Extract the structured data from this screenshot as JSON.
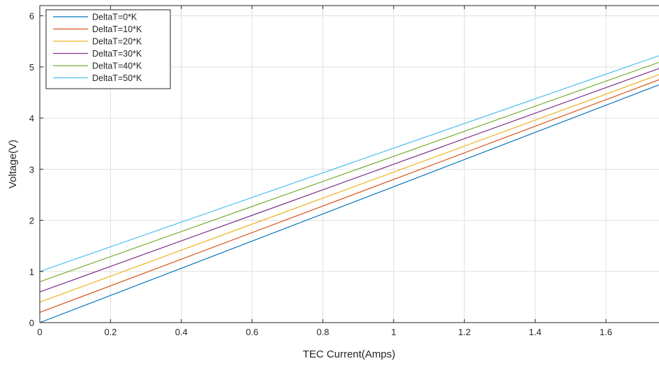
{
  "chart_data": {
    "type": "line",
    "title": "",
    "xlabel": "TEC Current(Amps)",
    "ylabel": "Voltage(V)",
    "xlim": [
      0,
      1.75
    ],
    "ylim": [
      0,
      6.2
    ],
    "xticks": [
      0,
      0.2,
      0.4,
      0.6,
      0.8,
      1,
      1.2,
      1.4,
      1.6
    ],
    "xtick_labels": [
      "0",
      "0.2",
      "0.4",
      "0.6",
      "0.8",
      "1",
      "1.2",
      "1.4",
      "1.6"
    ],
    "yticks": [
      0,
      1,
      2,
      3,
      4,
      5,
      6
    ],
    "ytick_labels": [
      "0",
      "1",
      "2",
      "3",
      "4",
      "5",
      "6"
    ],
    "grid": true,
    "legend_position": "top-left",
    "x": [
      0,
      1.75
    ],
    "series": [
      {
        "name": "DeltaT=0*K",
        "color": "#0072BD",
        "values": [
          0.0,
          4.65
        ]
      },
      {
        "name": "DeltaT=10*K",
        "color": "#D95319",
        "values": [
          0.2,
          4.75
        ]
      },
      {
        "name": "DeltaT=20*K",
        "color": "#EDB120",
        "values": [
          0.4,
          4.85
        ]
      },
      {
        "name": "DeltaT=30*K",
        "color": "#7E2F8E",
        "values": [
          0.6,
          4.97
        ]
      },
      {
        "name": "DeltaT=40*K",
        "color": "#77AC30",
        "values": [
          0.8,
          5.09
        ]
      },
      {
        "name": "DeltaT=50*K",
        "color": "#4DBEEE",
        "values": [
          1.0,
          5.22
        ]
      }
    ]
  }
}
